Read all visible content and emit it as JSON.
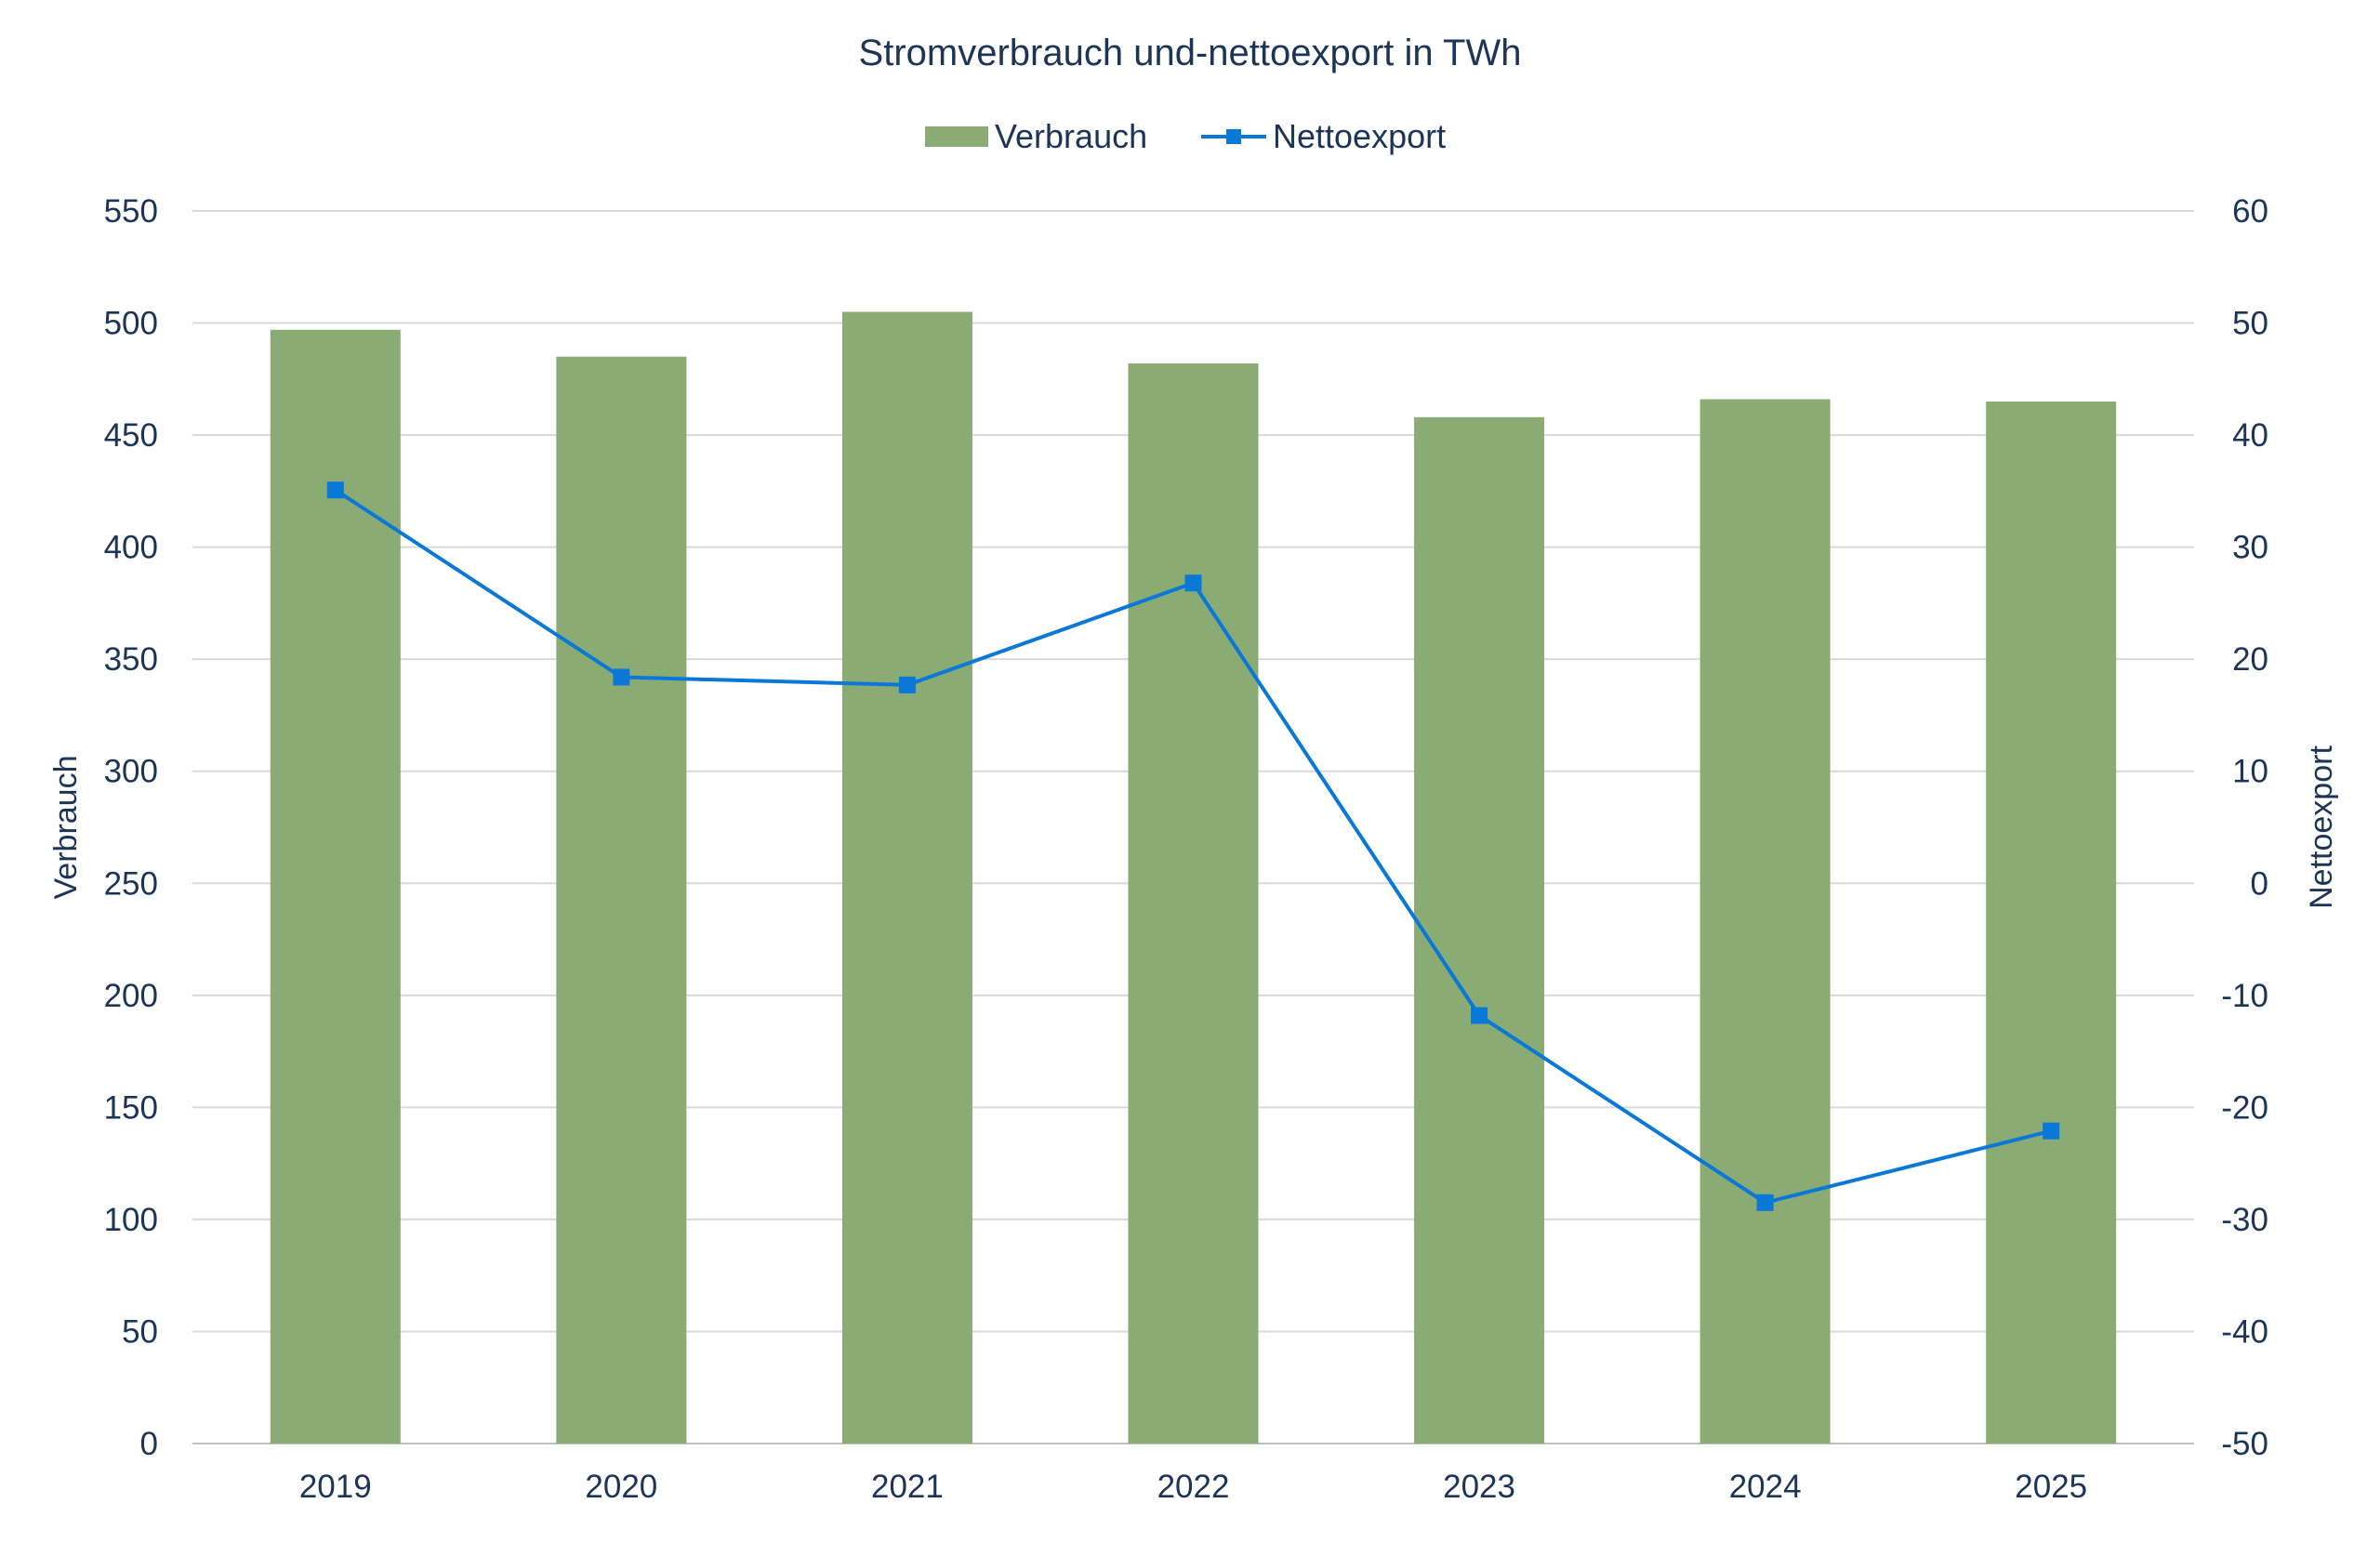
{
  "chart_data": {
    "type": "bar+line",
    "title": "Stromverbrauch und-nettoexport in TWh",
    "categories": [
      "2019",
      "2020",
      "2021",
      "2022",
      "2023",
      "2024",
      "2025"
    ],
    "series": [
      {
        "name": "Verbrauch",
        "type": "bar",
        "axis": "left",
        "color": "#8aab74",
        "values": [
          497,
          485,
          505,
          482,
          458,
          466,
          465
        ]
      },
      {
        "name": "Nettoexport",
        "type": "line",
        "axis": "right",
        "color": "#0a78d7",
        "marker": "square",
        "values": [
          35.1,
          18.4,
          17.7,
          26.8,
          -11.8,
          -28.5,
          -22.1
        ]
      }
    ],
    "ylabel": "Verbrauch",
    "y2label": "Nettoexport",
    "ylim": [
      0,
      550
    ],
    "y2lim": [
      -50,
      60
    ],
    "yticks": [
      "0",
      "50",
      "100",
      "150",
      "200",
      "250",
      "300",
      "350",
      "400",
      "450",
      "500",
      "550"
    ],
    "y2ticks": [
      "-50",
      "-40",
      "-30",
      "-20",
      "-10",
      "0",
      "10",
      "20",
      "30",
      "40",
      "50",
      "60"
    ],
    "grid": true,
    "legend": "top-center"
  }
}
